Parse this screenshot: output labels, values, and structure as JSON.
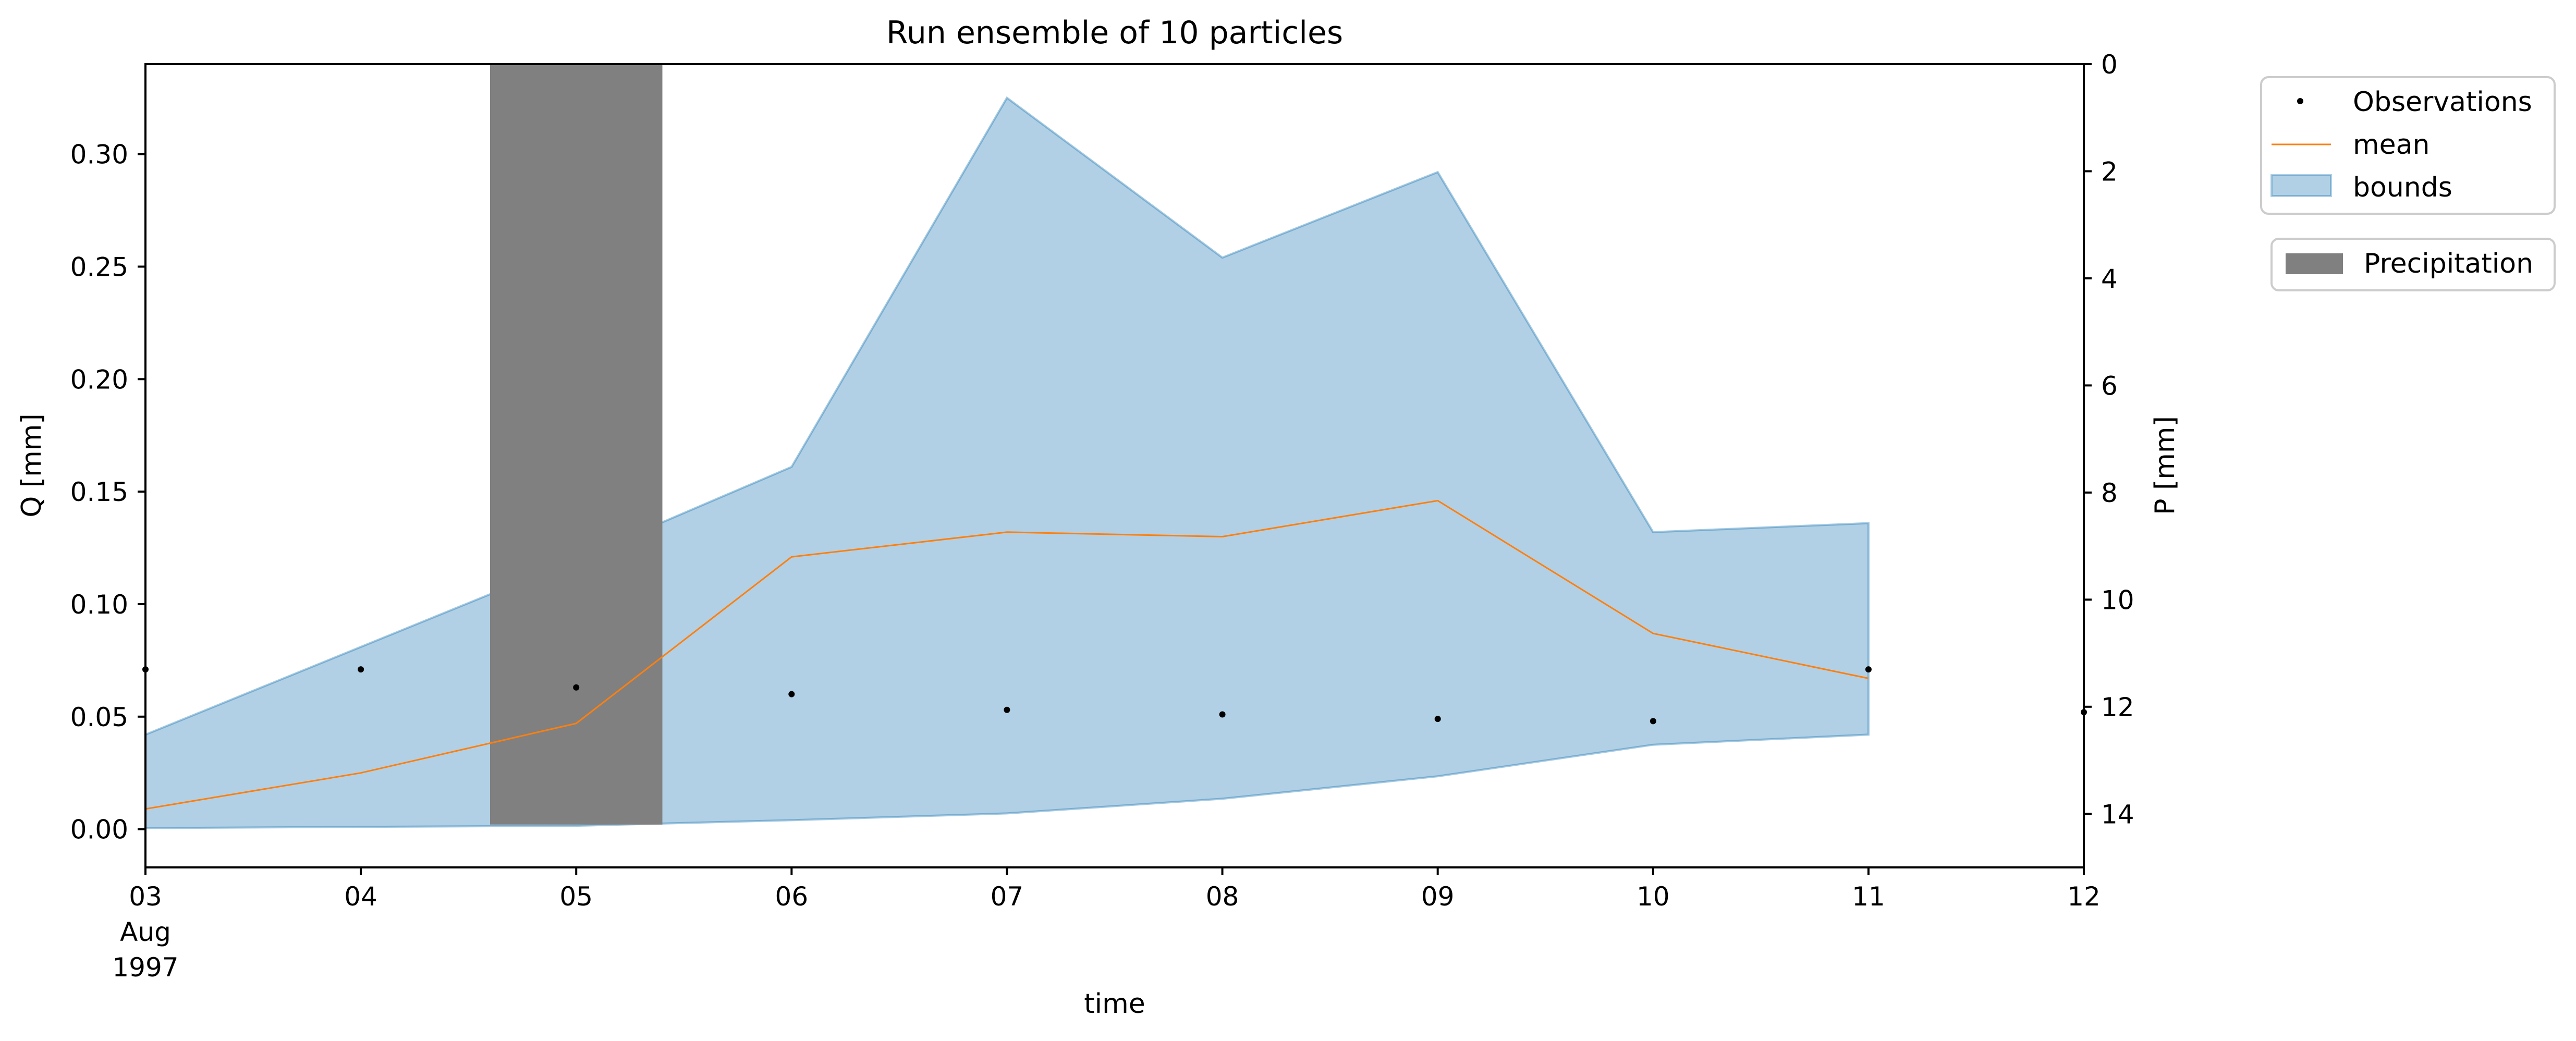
{
  "chart_data": {
    "type": "area",
    "title": "Run ensemble of 10 particles",
    "xlabel": "time",
    "ylabel": "Q [mm]",
    "y2label": "P [mm]",
    "x": [
      "1997-08-03",
      "1997-08-04",
      "1997-08-05",
      "1997-08-06",
      "1997-08-07",
      "1997-08-08",
      "1997-08-09",
      "1997-08-10",
      "1997-08-11"
    ],
    "xlim": [
      "1997-08-03",
      "1997-08-12"
    ],
    "x_ticks": [
      {
        "date": "1997-08-03",
        "label": "03",
        "sub1": "Aug",
        "sub2": "1997"
      },
      {
        "date": "1997-08-04",
        "label": "04"
      },
      {
        "date": "1997-08-05",
        "label": "05"
      },
      {
        "date": "1997-08-06",
        "label": "06"
      },
      {
        "date": "1997-08-07",
        "label": "07"
      },
      {
        "date": "1997-08-08",
        "label": "08"
      },
      {
        "date": "1997-08-09",
        "label": "09"
      },
      {
        "date": "1997-08-10",
        "label": "10"
      },
      {
        "date": "1997-08-11",
        "label": "11"
      },
      {
        "date": "1997-08-12",
        "label": "12"
      }
    ],
    "ylim": [
      -0.017,
      0.34
    ],
    "y_ticks": [
      0.0,
      0.05,
      0.1,
      0.15,
      0.2,
      0.25,
      0.3
    ],
    "y_tick_labels": [
      "0.00",
      "0.05",
      "0.10",
      "0.15",
      "0.20",
      "0.25",
      "0.30"
    ],
    "y2lim": [
      0,
      15
    ],
    "y2_inverted": true,
    "y2_ticks": [
      0,
      2,
      4,
      6,
      8,
      10,
      12,
      14
    ],
    "y2_tick_labels": [
      "0",
      "2",
      "4",
      "6",
      "8",
      "10",
      "12",
      "14"
    ],
    "series": [
      {
        "name": "Observations",
        "kind": "scatter",
        "color": "#000000",
        "x": [
          "1997-08-03",
          "1997-08-04",
          "1997-08-05",
          "1997-08-06",
          "1997-08-07",
          "1997-08-08",
          "1997-08-09",
          "1997-08-10",
          "1997-08-11",
          "1997-08-12"
        ],
        "values": [
          0.071,
          0.071,
          0.063,
          0.06,
          0.053,
          0.051,
          0.049,
          0.048,
          0.071,
          0.052
        ]
      },
      {
        "name": "mean",
        "kind": "line",
        "color": "#ff7f0e",
        "values": [
          0.009,
          0.025,
          0.047,
          0.121,
          0.132,
          0.13,
          0.146,
          0.087,
          0.067
        ]
      },
      {
        "name": "bounds",
        "kind": "band",
        "color": "#1f77b4",
        "upper": [
          0.042,
          0.081,
          0.12,
          0.161,
          0.325,
          0.254,
          0.292,
          0.132,
          0.136
        ],
        "lower": [
          0.0005,
          0.001,
          0.0015,
          0.004,
          0.007,
          0.0135,
          0.0235,
          0.0375,
          0.042
        ]
      }
    ],
    "precipitation": {
      "name": "Precipitation",
      "kind": "bar",
      "color": "#808080",
      "axis": "right",
      "x": [
        "1997-08-05"
      ],
      "values": [
        14.2
      ],
      "width_days": 0.8
    },
    "legend": {
      "placement": "outside upper right",
      "entries": [
        "Observations",
        "mean",
        "bounds"
      ],
      "secondary_entries": [
        "Precipitation"
      ]
    },
    "grid": false
  }
}
